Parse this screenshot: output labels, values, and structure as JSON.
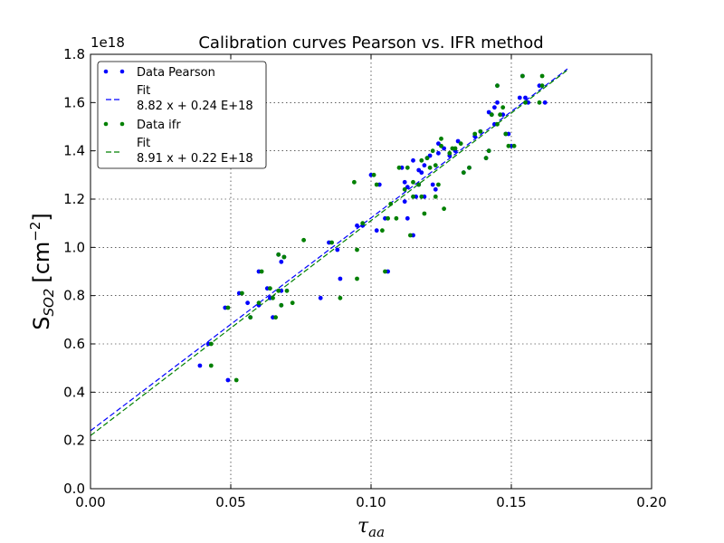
{
  "chart_data": {
    "type": "scatter",
    "title": "Calibration curves Pearson vs. IFR method",
    "xlabel": "τ",
    "xlabel_sub": "aa",
    "ylabel": "S",
    "ylabel_sub": "SO2",
    "ylabel_unit_pre": "[cm",
    "ylabel_unit_sup": "−2",
    "ylabel_unit_post": "]",
    "y_offset_label": "1e18",
    "xlim": [
      0.0,
      0.2
    ],
    "ylim": [
      0.0,
      1.8
    ],
    "xticks": [
      "0.00",
      "0.05",
      "0.10",
      "0.15",
      "0.20"
    ],
    "yticks": [
      "0.0",
      "0.2",
      "0.4",
      "0.6",
      "0.8",
      "1.0",
      "1.2",
      "1.4",
      "1.6",
      "1.8"
    ],
    "grid": true,
    "legend_position": "top-left",
    "colors": {
      "pearson": "#0000ff",
      "ifr": "#008000"
    },
    "legend": [
      {
        "kind": "marker",
        "series": "pearson",
        "label": "Data Pearson"
      },
      {
        "kind": "line",
        "series": "pearson",
        "label": "Fit",
        "label2": "8.82 x + 0.24 E+18"
      },
      {
        "kind": "marker",
        "series": "ifr",
        "label": "Data ifr"
      },
      {
        "kind": "line",
        "series": "ifr",
        "label": "Fit",
        "label2": "8.91 x + 0.22 E+18"
      }
    ],
    "fits": [
      {
        "series": "pearson",
        "slope": 8.82,
        "intercept": 0.24,
        "x_range": [
          0.0,
          0.17
        ]
      },
      {
        "series": "ifr",
        "slope": 8.91,
        "intercept": 0.22,
        "x_range": [
          0.0,
          0.17
        ]
      }
    ],
    "series": [
      {
        "name": "Data Pearson",
        "points": [
          [
            0.039,
            0.51
          ],
          [
            0.042,
            0.6
          ],
          [
            0.048,
            0.75
          ],
          [
            0.049,
            0.45
          ],
          [
            0.053,
            0.81
          ],
          [
            0.056,
            0.77
          ],
          [
            0.057,
            0.71
          ],
          [
            0.06,
            0.9
          ],
          [
            0.06,
            0.76
          ],
          [
            0.063,
            0.83
          ],
          [
            0.064,
            0.79
          ],
          [
            0.065,
            0.71
          ],
          [
            0.067,
            0.97
          ],
          [
            0.068,
            0.82
          ],
          [
            0.068,
            0.76
          ],
          [
            0.068,
            0.94
          ],
          [
            0.069,
            0.96
          ],
          [
            0.082,
            0.79
          ],
          [
            0.085,
            1.02
          ],
          [
            0.088,
            0.99
          ],
          [
            0.089,
            0.87
          ],
          [
            0.095,
            1.09
          ],
          [
            0.097,
            1.09
          ],
          [
            0.1,
            1.3
          ],
          [
            0.102,
            1.07
          ],
          [
            0.103,
            1.26
          ],
          [
            0.105,
            1.12
          ],
          [
            0.106,
            0.9
          ],
          [
            0.111,
            1.33
          ],
          [
            0.112,
            1.27
          ],
          [
            0.112,
            1.19
          ],
          [
            0.113,
            1.25
          ],
          [
            0.113,
            1.12
          ],
          [
            0.115,
            1.05
          ],
          [
            0.115,
            1.36
          ],
          [
            0.116,
            1.21
          ],
          [
            0.117,
            1.32
          ],
          [
            0.117,
            1.26
          ],
          [
            0.118,
            1.31
          ],
          [
            0.119,
            1.34
          ],
          [
            0.119,
            1.21
          ],
          [
            0.12,
            1.37
          ],
          [
            0.121,
            1.38
          ],
          [
            0.122,
            1.26
          ],
          [
            0.123,
            1.24
          ],
          [
            0.124,
            1.43
          ],
          [
            0.124,
            1.39
          ],
          [
            0.126,
            1.41
          ],
          [
            0.128,
            1.38
          ],
          [
            0.13,
            1.4
          ],
          [
            0.131,
            1.44
          ],
          [
            0.133,
            1.31
          ],
          [
            0.135,
            1.33
          ],
          [
            0.137,
            1.46
          ],
          [
            0.139,
            1.48
          ],
          [
            0.141,
            1.37
          ],
          [
            0.142,
            1.4
          ],
          [
            0.142,
            1.56
          ],
          [
            0.143,
            1.55
          ],
          [
            0.144,
            1.51
          ],
          [
            0.144,
            1.58
          ],
          [
            0.145,
            1.6
          ],
          [
            0.145,
            1.67
          ],
          [
            0.147,
            1.55
          ],
          [
            0.148,
            1.47
          ],
          [
            0.149,
            1.47
          ],
          [
            0.15,
            1.42
          ],
          [
            0.153,
            1.62
          ],
          [
            0.154,
            1.71
          ],
          [
            0.155,
            1.62
          ],
          [
            0.156,
            1.6
          ],
          [
            0.16,
            1.67
          ],
          [
            0.162,
            1.6
          ]
        ]
      },
      {
        "name": "Data ifr",
        "points": [
          [
            0.043,
            0.51
          ],
          [
            0.043,
            0.6
          ],
          [
            0.049,
            0.75
          ],
          [
            0.052,
            0.45
          ],
          [
            0.054,
            0.81
          ],
          [
            0.057,
            0.71
          ],
          [
            0.06,
            0.77
          ],
          [
            0.061,
            0.9
          ],
          [
            0.064,
            0.83
          ],
          [
            0.065,
            0.79
          ],
          [
            0.066,
            0.71
          ],
          [
            0.067,
            0.97
          ],
          [
            0.067,
            0.82
          ],
          [
            0.068,
            0.76
          ],
          [
            0.069,
            0.96
          ],
          [
            0.07,
            0.82
          ],
          [
            0.072,
            0.77
          ],
          [
            0.076,
            1.03
          ],
          [
            0.086,
            1.02
          ],
          [
            0.089,
            0.79
          ],
          [
            0.094,
            1.27
          ],
          [
            0.095,
            0.87
          ],
          [
            0.095,
            0.99
          ],
          [
            0.097,
            1.1
          ],
          [
            0.101,
            1.3
          ],
          [
            0.102,
            1.26
          ],
          [
            0.104,
            1.07
          ],
          [
            0.105,
            0.9
          ],
          [
            0.106,
            1.12
          ],
          [
            0.107,
            1.18
          ],
          [
            0.109,
            1.12
          ],
          [
            0.11,
            1.33
          ],
          [
            0.112,
            1.24
          ],
          [
            0.113,
            1.33
          ],
          [
            0.114,
            1.05
          ],
          [
            0.115,
            1.27
          ],
          [
            0.115,
            1.21
          ],
          [
            0.117,
            1.26
          ],
          [
            0.118,
            1.36
          ],
          [
            0.118,
            1.21
          ],
          [
            0.119,
            1.14
          ],
          [
            0.12,
            1.37
          ],
          [
            0.121,
            1.33
          ],
          [
            0.122,
            1.4
          ],
          [
            0.123,
            1.34
          ],
          [
            0.123,
            1.21
          ],
          [
            0.124,
            1.26
          ],
          [
            0.125,
            1.45
          ],
          [
            0.125,
            1.42
          ],
          [
            0.126,
            1.16
          ],
          [
            0.128,
            1.39
          ],
          [
            0.129,
            1.41
          ],
          [
            0.13,
            1.41
          ],
          [
            0.132,
            1.43
          ],
          [
            0.133,
            1.31
          ],
          [
            0.135,
            1.33
          ],
          [
            0.137,
            1.47
          ],
          [
            0.139,
            1.48
          ],
          [
            0.141,
            1.37
          ],
          [
            0.142,
            1.4
          ],
          [
            0.143,
            1.55
          ],
          [
            0.145,
            1.51
          ],
          [
            0.145,
            1.67
          ],
          [
            0.146,
            1.55
          ],
          [
            0.147,
            1.58
          ],
          [
            0.148,
            1.47
          ],
          [
            0.149,
            1.42
          ],
          [
            0.151,
            1.42
          ],
          [
            0.154,
            1.71
          ],
          [
            0.155,
            1.6
          ],
          [
            0.16,
            1.6
          ],
          [
            0.161,
            1.71
          ],
          [
            0.161,
            1.67
          ]
        ]
      }
    ]
  }
}
